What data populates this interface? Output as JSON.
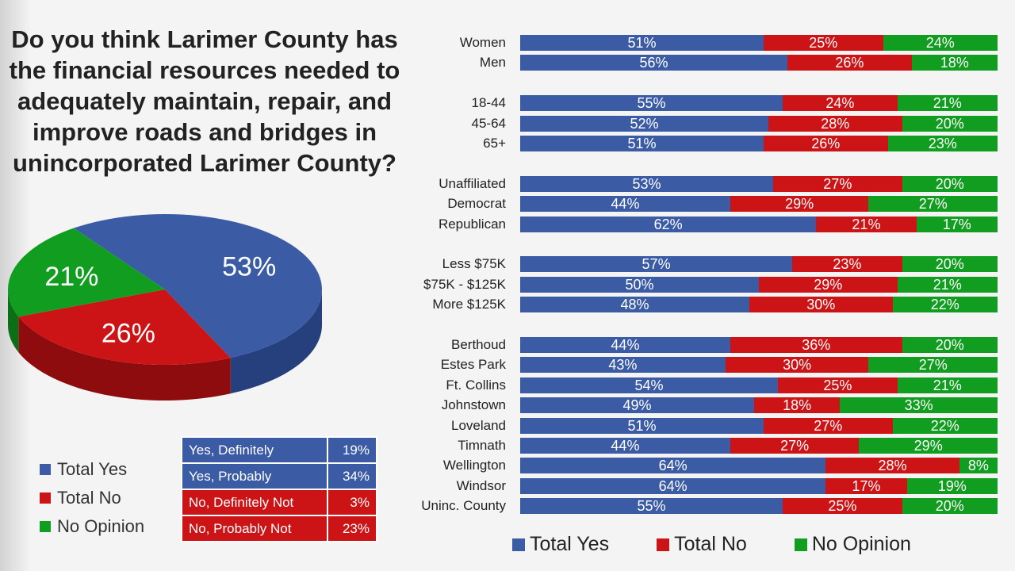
{
  "question": "Do you think Larimer County has the financial resources needed to adequately maintain, repair, and improve roads and bridges in unincorporated Larimer County?",
  "colors": {
    "yes": "#3b5ba5",
    "no": "#cc1417",
    "no_opinion": "#119d1f"
  },
  "legend": {
    "yes": "Total Yes",
    "no": "Total No",
    "no_opinion": "No Opinion"
  },
  "detail_table": [
    {
      "label": "Yes, Definitely",
      "value": "19%",
      "kind": "yes"
    },
    {
      "label": "Yes, Probably",
      "value": "34%",
      "kind": "yes"
    },
    {
      "label": "No, Definitely Not",
      "value": "3%",
      "kind": "no"
    },
    {
      "label": "No, Probably Not",
      "value": "23%",
      "kind": "no"
    }
  ],
  "chart_data": [
    {
      "type": "pie",
      "title": "Do you think Larimer County has the financial resources needed to adequately maintain, repair, and improve roads and bridges in unincorporated Larimer County?",
      "slices": [
        {
          "name": "Total Yes",
          "value": 53,
          "label": "53%"
        },
        {
          "name": "Total No",
          "value": 26,
          "label": "26%"
        },
        {
          "name": "No Opinion",
          "value": 21,
          "label": "21%"
        }
      ]
    },
    {
      "type": "bar",
      "orientation": "horizontal",
      "stacked": true,
      "legend_position": "bottom",
      "series_names": [
        "Total Yes",
        "Total No",
        "No Opinion"
      ],
      "groups": [
        {
          "rows": [
            {
              "label": "Women",
              "values": [
                51,
                25,
                24
              ]
            },
            {
              "label": "Men",
              "values": [
                56,
                26,
                18
              ]
            }
          ]
        },
        {
          "rows": [
            {
              "label": "18-44",
              "values": [
                55,
                24,
                21
              ]
            },
            {
              "label": "45-64",
              "values": [
                52,
                28,
                20
              ]
            },
            {
              "label": "65+",
              "values": [
                51,
                26,
                23
              ]
            }
          ]
        },
        {
          "rows": [
            {
              "label": "Unaffiliated",
              "values": [
                53,
                27,
                20
              ]
            },
            {
              "label": "Democrat",
              "values": [
                44,
                29,
                27
              ]
            },
            {
              "label": "Republican",
              "values": [
                62,
                21,
                17
              ]
            }
          ]
        },
        {
          "rows": [
            {
              "label": "Less $75K",
              "values": [
                57,
                23,
                20
              ]
            },
            {
              "label": "$75K - $125K",
              "values": [
                50,
                29,
                21
              ]
            },
            {
              "label": "More $125K",
              "values": [
                48,
                30,
                22
              ]
            }
          ]
        },
        {
          "rows": [
            {
              "label": "Berthoud",
              "values": [
                44,
                36,
                20
              ]
            },
            {
              "label": "Estes Park",
              "values": [
                43,
                30,
                27
              ]
            },
            {
              "label": "Ft. Collins",
              "values": [
                54,
                25,
                21
              ]
            },
            {
              "label": "Johnstown",
              "values": [
                49,
                18,
                33
              ]
            },
            {
              "label": "Loveland",
              "values": [
                51,
                27,
                22
              ]
            },
            {
              "label": "Timnath",
              "values": [
                44,
                27,
                29
              ]
            },
            {
              "label": "Wellington",
              "values": [
                64,
                28,
                8
              ]
            },
            {
              "label": "Windsor",
              "values": [
                64,
                17,
                19
              ]
            },
            {
              "label": "Uninc. County",
              "values": [
                55,
                25,
                20
              ]
            }
          ]
        }
      ]
    }
  ]
}
